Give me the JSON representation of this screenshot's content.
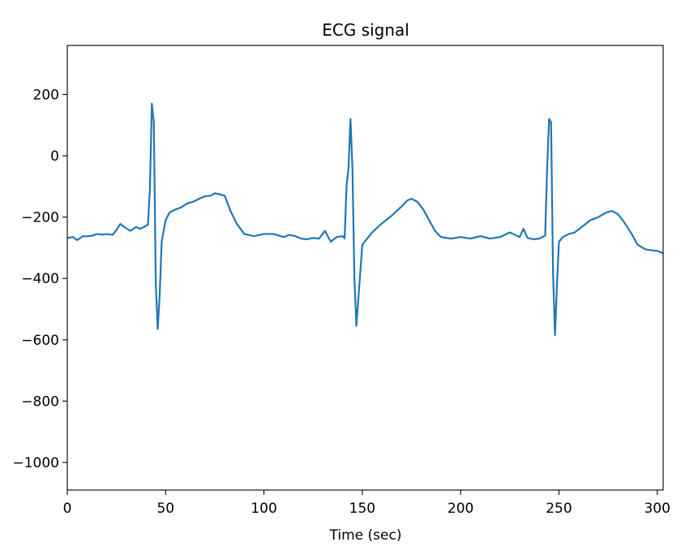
{
  "chart_data": {
    "type": "line",
    "title": "ECG signal",
    "xlabel": "Time (sec)",
    "ylabel": "",
    "xlim": [
      0,
      303
    ],
    "ylim": [
      -1090,
      360
    ],
    "xticks": [
      0,
      50,
      100,
      150,
      200,
      250,
      300
    ],
    "yticks": [
      200,
      0,
      -200,
      -400,
      -600,
      -800,
      -1000
    ],
    "grid": false,
    "legend": "none",
    "series": [
      {
        "color": "#1f77b4",
        "x": [
          0,
          3,
          5,
          8,
          10,
          13,
          15,
          18,
          20,
          23,
          25,
          27,
          29,
          32,
          35,
          37,
          39,
          41,
          42,
          43,
          44,
          45,
          46,
          47,
          48,
          50,
          52,
          55,
          58,
          61,
          64,
          67,
          70,
          73,
          75,
          77,
          80,
          83,
          86,
          90,
          95,
          100,
          105,
          110,
          113,
          116,
          119,
          122,
          125,
          128,
          131,
          134,
          137,
          140,
          141,
          142,
          143,
          144,
          145,
          146,
          147,
          150,
          155,
          160,
          165,
          170,
          173,
          175,
          178,
          181,
          184,
          187,
          190,
          195,
          200,
          205,
          210,
          215,
          220,
          225,
          230,
          232,
          234,
          237,
          240,
          243,
          244,
          245,
          246,
          247,
          248,
          249,
          250,
          252,
          255,
          258,
          262,
          266,
          270,
          274,
          277,
          280,
          283,
          287,
          290,
          294,
          297,
          300,
          303
        ],
        "y": [
          -268,
          -265,
          -275,
          -262,
          -263,
          -260,
          -255,
          -257,
          -255,
          -258,
          -242,
          -222,
          -232,
          -245,
          -232,
          -238,
          -232,
          -225,
          -112,
          170,
          110,
          -420,
          -565,
          -450,
          -280,
          -210,
          -185,
          -175,
          -168,
          -155,
          -150,
          -140,
          -132,
          -130,
          -122,
          -125,
          -130,
          -180,
          -220,
          -255,
          -262,
          -255,
          -255,
          -265,
          -258,
          -262,
          -270,
          -272,
          -268,
          -270,
          -245,
          -280,
          -265,
          -262,
          -270,
          -100,
          -40,
          120,
          -40,
          -400,
          -555,
          -290,
          -250,
          -220,
          -195,
          -165,
          -145,
          -140,
          -150,
          -175,
          -210,
          -245,
          -265,
          -270,
          -265,
          -270,
          -262,
          -270,
          -265,
          -250,
          -265,
          -238,
          -268,
          -272,
          -270,
          -260,
          -40,
          120,
          110,
          -380,
          -585,
          -420,
          -280,
          -265,
          -255,
          -250,
          -230,
          -210,
          -200,
          -185,
          -180,
          -190,
          -215,
          -255,
          -290,
          -305,
          -308,
          -310,
          -318
        ]
      }
    ]
  }
}
